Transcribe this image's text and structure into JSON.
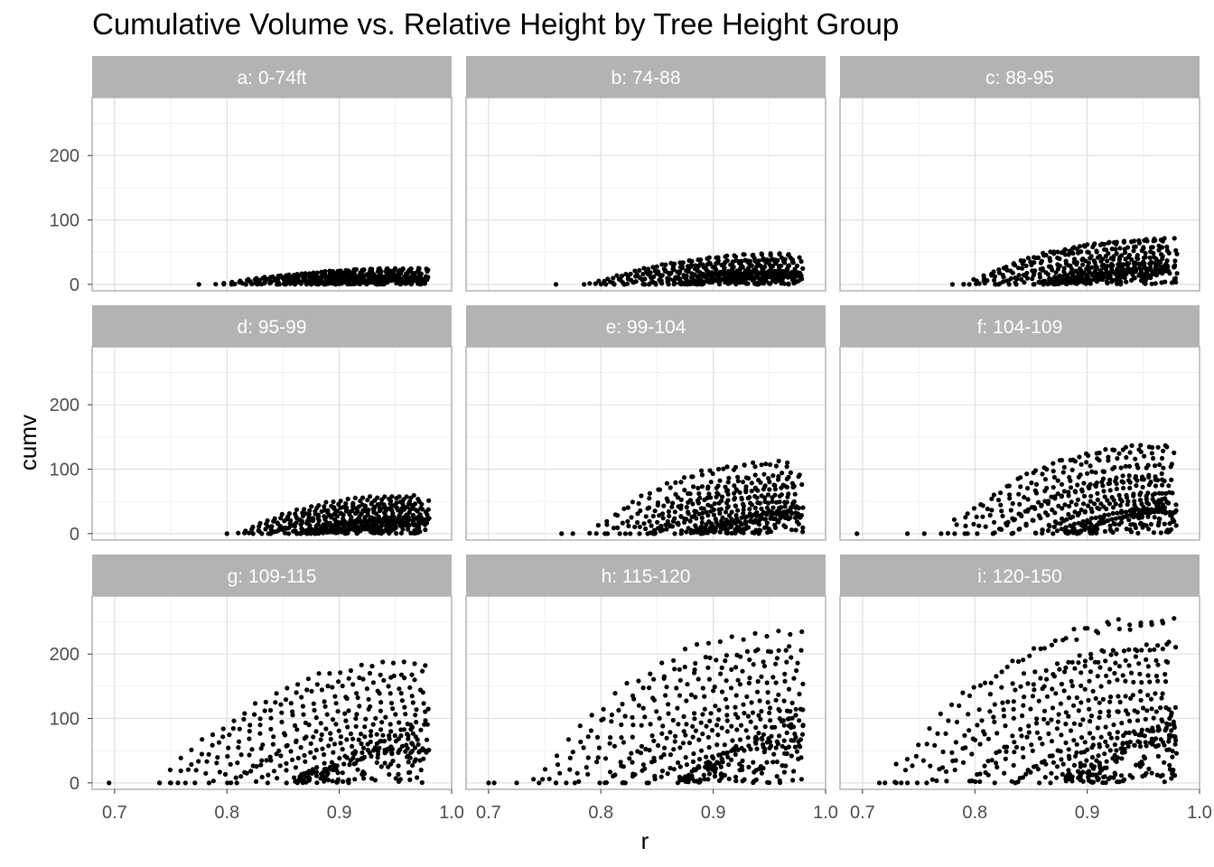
{
  "chart_data": {
    "type": "scatter",
    "title": "Cumulative Volume vs. Relative Height by Tree Height Group",
    "xlabel": "r",
    "ylabel": "cumv",
    "xlim": [
      0.68,
      1.0
    ],
    "ylim": [
      -10,
      290
    ],
    "x_ticks": [
      "0.7",
      "0.8",
      "0.9",
      "1.0"
    ],
    "x_tick_values": [
      0.7,
      0.8,
      0.9,
      1.0
    ],
    "y_ticks": [
      "0",
      "100",
      "200"
    ],
    "y_tick_values": [
      0,
      100,
      200
    ],
    "grid": true,
    "facet_layout": "3x3",
    "point_color": "#000000",
    "strip_color": "#b3b3b3",
    "strip_text_color": "#ffffff",
    "panels": [
      {
        "label": "a: 0-74ft",
        "min_r": 0.775,
        "curves": 14,
        "max_cumv": 27,
        "start_range": [
          0.79,
          0.9
        ],
        "shape": 1.0,
        "points": [
          [
            0.775,
            0
          ]
        ]
      },
      {
        "label": "b: 74-88",
        "min_r": 0.76,
        "curves": 16,
        "max_cumv": 50,
        "start_range": [
          0.79,
          0.89
        ],
        "shape": 1.1,
        "points": [
          [
            0.76,
            0
          ],
          [
            0.785,
            0
          ]
        ]
      },
      {
        "label": "c: 88-95",
        "min_r": 0.78,
        "curves": 16,
        "max_cumv": 75,
        "start_range": [
          0.79,
          0.89
        ],
        "shape": 1.2,
        "points": [
          [
            0.78,
            0
          ],
          [
            0.79,
            0
          ]
        ]
      },
      {
        "label": "d: 95-99",
        "min_r": 0.8,
        "curves": 16,
        "max_cumv": 60,
        "start_range": [
          0.81,
          0.9
        ],
        "shape": 1.2,
        "points": [
          [
            0.8,
            0
          ]
        ]
      },
      {
        "label": "e: 99-104",
        "min_r": 0.76,
        "curves": 16,
        "max_cumv": 113,
        "start_range": [
          0.79,
          0.9
        ],
        "shape": 1.3,
        "points": [
          [
            0.765,
            0
          ],
          [
            0.775,
            0
          ]
        ]
      },
      {
        "label": "f: 104-109",
        "min_r": 0.695,
        "curves": 16,
        "max_cumv": 145,
        "start_range": [
          0.77,
          0.9
        ],
        "shape": 1.3,
        "points": [
          [
            0.695,
            0
          ],
          [
            0.74,
            0
          ],
          [
            0.755,
            0
          ]
        ]
      },
      {
        "label": "g: 109-115",
        "min_r": 0.695,
        "curves": 14,
        "max_cumv": 200,
        "start_range": [
          0.74,
          0.88
        ],
        "shape": 1.3,
        "points": [
          [
            0.695,
            0
          ],
          [
            0.74,
            0
          ],
          [
            0.75,
            0
          ]
        ]
      },
      {
        "label": "h: 115-120",
        "min_r": 0.7,
        "curves": 16,
        "max_cumv": 242,
        "start_range": [
          0.74,
          0.89
        ],
        "shape": 1.3,
        "points": [
          [
            0.7,
            0
          ],
          [
            0.705,
            0
          ],
          [
            0.725,
            0
          ],
          [
            0.745,
            0
          ],
          [
            0.76,
            0
          ]
        ]
      },
      {
        "label": "i: 120-150",
        "min_r": 0.715,
        "curves": 18,
        "max_cumv": 262,
        "start_range": [
          0.72,
          0.9
        ],
        "shape": 1.3,
        "points": [
          [
            0.715,
            0
          ],
          [
            0.73,
            0
          ],
          [
            0.74,
            0
          ]
        ]
      }
    ]
  }
}
